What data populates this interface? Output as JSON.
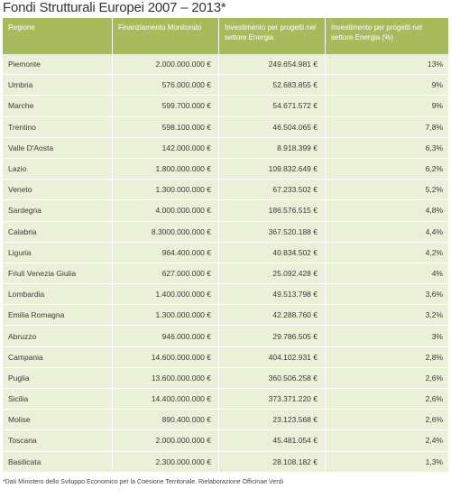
{
  "title": "Fondi Strutturali Europei 2007 – 2013*",
  "table": {
    "headers": [
      "Regione",
      "Finanziamento Monitorato",
      "Investimento per progetti nel settore Energia",
      "Investimento per progetti nel settore Energia (%)"
    ],
    "rows": [
      [
        "Piemonte",
        "2.000.000.000 €",
        "249.654.981 €",
        "13%"
      ],
      [
        "Umbria",
        "576.000.000 €",
        "52.683.855 €",
        "9%"
      ],
      [
        "Marche",
        "599.700.000 €",
        "54.671.572 €",
        "9%"
      ],
      [
        "Trentino",
        "598.100.000 €",
        "46.504.065 €",
        "7,8%"
      ],
      [
        "Valle D'Aosta",
        "142.000.000 €",
        "8.918.399 €",
        "6,3%"
      ],
      [
        "Lazio",
        "1.800.000.000 €",
        "109.832.649 €",
        "6,2%"
      ],
      [
        "Veneto",
        "1.300.000.000 €",
        "67.233.502 €",
        "5,2%"
      ],
      [
        "Sardegna",
        "4.000.000.000 €",
        "186.576.515 €",
        "4,8%"
      ],
      [
        "Calabria",
        "8.3000.000.000 €",
        "367.520.188 €",
        "4,4%"
      ],
      [
        "Liguria",
        "964.400.000 €",
        "40.834.502 €",
        "4,2%"
      ],
      [
        "Friuli Venezia Giulia",
        "627.000.000 €",
        "25.092.428 €",
        "4%"
      ],
      [
        "Lombardia",
        "1.400.000.000 €",
        "49.513.798 €",
        "3,6%"
      ],
      [
        "Emilia Romagna",
        "1.300.000.000 €",
        "42.288.760 €",
        "3,2%"
      ],
      [
        "Abruzzo",
        "946.000.000 €",
        "29.786.505 €",
        "3%"
      ],
      [
        "Campania",
        "14.600.000.000 €",
        "404.102.931 €",
        "2,8%"
      ],
      [
        "Puglia",
        "13.600.000.000 €",
        "360.506.258 €",
        "2,6%"
      ],
      [
        "Sicilia",
        "14.400.000.000 €",
        "373.371.220 €",
        "2,6%"
      ],
      [
        "Molise",
        "890.400.000 €",
        "23.123.568 €",
        "2,6%"
      ],
      [
        "Toscana",
        "2.000.000.000 €",
        "45.481.054 €",
        "2,4%"
      ],
      [
        "Basilicata",
        "2.300.000.000 €",
        "28.108.182 €",
        "1,3%"
      ]
    ]
  },
  "footnote": "*Dati Ministero dello Sviluppo Economico per la Coesione  Territoriale. Rielaborazione Officinae Verdi",
  "colors": {
    "header_bg": "#a8bb5c",
    "row_bg": "#ebf0d9"
  }
}
